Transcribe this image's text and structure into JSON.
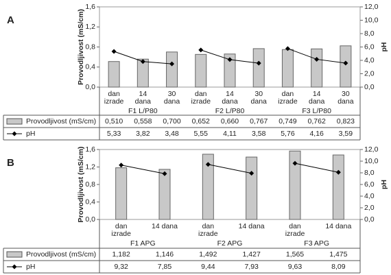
{
  "chart_data": [
    {
      "type": "bar",
      "panel": "A",
      "y_label": "Provodljivost (mS/cm)",
      "y2_label": "pH",
      "categories": [
        [
          "dan",
          "izrade"
        ],
        [
          "14",
          "dana"
        ],
        [
          "30",
          "dana"
        ],
        [
          "dan",
          "izrade"
        ],
        [
          "14",
          "dana"
        ],
        [
          "30",
          "dana"
        ],
        [
          "dan",
          "izrade"
        ],
        [
          "14",
          "dana"
        ],
        [
          "30",
          "dana"
        ]
      ],
      "groups": [
        "F1 L/P80",
        "F2 L/P80",
        "F3 L/P80"
      ],
      "series": [
        {
          "name": "Provodljivost (mS/cm)",
          "type": "bar",
          "color": "#c8c8c8",
          "values": [
            0.51,
            0.558,
            0.7,
            0.652,
            0.66,
            0.767,
            0.749,
            0.762,
            0.823
          ],
          "value_labels": [
            "0,510",
            "0,558",
            "0,700",
            "0,652",
            "0,660",
            "0,767",
            "0,749",
            "0,762",
            "0,823"
          ]
        },
        {
          "name": "pH",
          "type": "line",
          "axis": "y2",
          "color": "#000000",
          "values": [
            5.33,
            3.82,
            3.48,
            5.55,
            4.11,
            3.58,
            5.76,
            4.16,
            3.59
          ],
          "value_labels": [
            "5,33",
            "3,82",
            "3,48",
            "5,55",
            "4,11",
            "3,58",
            "5,76",
            "4,16",
            "3,59"
          ]
        }
      ],
      "ylim": [
        0,
        1.6
      ],
      "yticks": [
        {
          "value": 0,
          "label": "0,0"
        },
        {
          "value": 0.4,
          "label": "0,4"
        },
        {
          "value": 0.8,
          "label": "0,8"
        },
        {
          "value": 1.2,
          "label": "1,2"
        },
        {
          "value": 1.6,
          "label": "1,6"
        }
      ],
      "y2lim": [
        0,
        12
      ],
      "y2ticks": [
        {
          "value": 0,
          "label": "0,0"
        },
        {
          "value": 2,
          "label": "2,0"
        },
        {
          "value": 4,
          "label": "4,0"
        },
        {
          "value": 6,
          "label": "6,0"
        },
        {
          "value": 8,
          "label": "8,0"
        },
        {
          "value": 10,
          "label": "10,0"
        },
        {
          "value": 12,
          "label": "12,0"
        }
      ]
    },
    {
      "type": "bar",
      "panel": "B",
      "y_label": "Provodljivost (mS/cm)",
      "y2_label": "pH",
      "categories": [
        [
          "dan",
          "izrade"
        ],
        [
          "14 dana"
        ],
        [
          "dan",
          "izrade"
        ],
        [
          "14 dana"
        ],
        [
          "dan",
          "izrade"
        ],
        [
          "14 dana"
        ]
      ],
      "groups": [
        "F1 APG",
        "F2 APG",
        "F3 APG"
      ],
      "series": [
        {
          "name": "Provodljivost (mS/cm)",
          "type": "bar",
          "color": "#c8c8c8",
          "values": [
            1.182,
            1.146,
            1.492,
            1.427,
            1.565,
            1.475
          ],
          "value_labels": [
            "1,182",
            "1,146",
            "1,492",
            "1,427",
            "1,565",
            "1,475"
          ]
        },
        {
          "name": "pH",
          "type": "line",
          "axis": "y2",
          "color": "#000000",
          "values": [
            9.32,
            7.85,
            9.44,
            7.93,
            9.63,
            8.09
          ],
          "value_labels": [
            "9,32",
            "7,85",
            "9,44",
            "7,93",
            "9,63",
            "8,09"
          ]
        }
      ],
      "ylim": [
        0,
        1.6
      ],
      "yticks": [
        {
          "value": 0,
          "label": "0,0"
        },
        {
          "value": 0.4,
          "label": "0,4"
        },
        {
          "value": 0.8,
          "label": "0,8"
        },
        {
          "value": 1.2,
          "label": "1,2"
        },
        {
          "value": 1.6,
          "label": "1,6"
        }
      ],
      "y2lim": [
        0,
        12
      ],
      "y2ticks": [
        {
          "value": 0,
          "label": "0,0"
        },
        {
          "value": 2,
          "label": "2,0"
        },
        {
          "value": 4,
          "label": "4,0"
        },
        {
          "value": 6,
          "label": "6,0"
        },
        {
          "value": 8,
          "label": "8,0"
        },
        {
          "value": 10,
          "label": "10,0"
        },
        {
          "value": 12,
          "label": "12,0"
        }
      ]
    }
  ]
}
